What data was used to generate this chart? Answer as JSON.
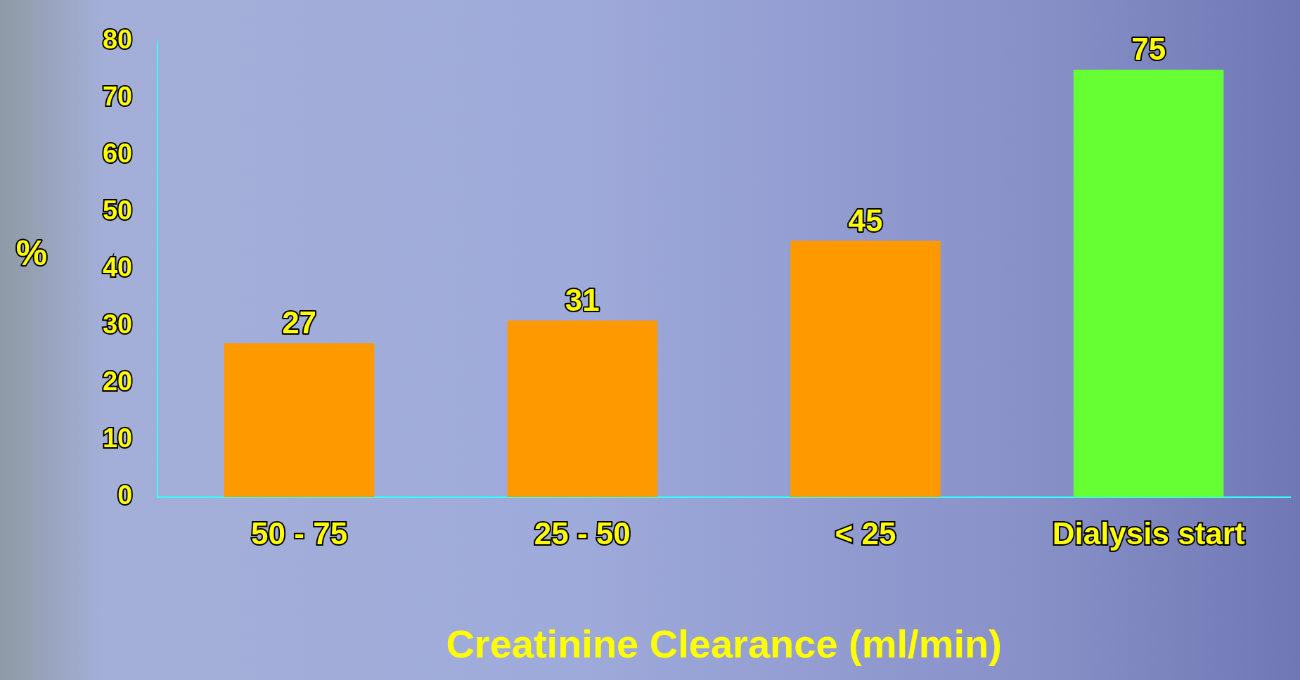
{
  "chart_data": {
    "type": "bar",
    "xlabel": "Creatinine Clearance (ml/min)",
    "ylabel": "%",
    "categories": [
      "50 - 75",
      "25 - 50",
      "< 25",
      "Dialysis start"
    ],
    "values": [
      27,
      31,
      45,
      75
    ],
    "colors": [
      "#ff9900",
      "#ff9900",
      "#ff9900",
      "#66ff33"
    ],
    "ylim": [
      0,
      80
    ],
    "yticks": [
      0,
      10,
      20,
      30,
      40,
      50,
      60,
      70,
      80
    ],
    "data_labels": true,
    "grid": false,
    "legend": false
  }
}
